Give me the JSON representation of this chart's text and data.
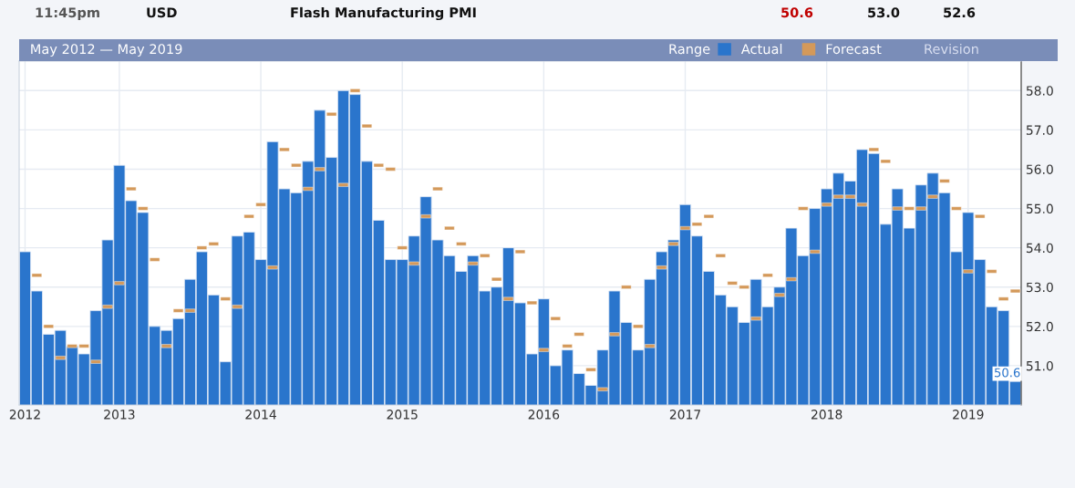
{
  "chart_data": {
    "type": "bar",
    "title": "May 2012 — May 2019",
    "categories": [
      "2012",
      null,
      null,
      null,
      null,
      null,
      null,
      null,
      "2013",
      null,
      null,
      null,
      null,
      null,
      null,
      null,
      null,
      null,
      null,
      null,
      "2014",
      null,
      null,
      null,
      null,
      null,
      null,
      null,
      null,
      null,
      null,
      null,
      "2015",
      null,
      null,
      null,
      null,
      null,
      null,
      null,
      null,
      null,
      null,
      null,
      "2016",
      null,
      null,
      null,
      null,
      null,
      null,
      null,
      null,
      null,
      null,
      null,
      "2017",
      null,
      null,
      null,
      null,
      null,
      null,
      null,
      null,
      null,
      null,
      null,
      "2018",
      null,
      null,
      null,
      null,
      null,
      null,
      null,
      null,
      null,
      null,
      null,
      "2019",
      null,
      null,
      null,
      null
    ],
    "series": [
      {
        "name": "Actual",
        "color": "#2a75cc",
        "values": [
          53.9,
          52.9,
          51.8,
          51.9,
          51.5,
          51.3,
          52.4,
          54.2,
          56.1,
          55.2,
          54.9,
          52.0,
          51.9,
          52.2,
          53.2,
          53.9,
          52.8,
          51.1,
          54.3,
          54.4,
          53.7,
          56.7,
          55.5,
          55.4,
          56.2,
          57.5,
          56.3,
          58.0,
          57.9,
          56.2,
          54.7,
          53.7,
          53.7,
          54.3,
          55.3,
          54.2,
          53.8,
          53.4,
          53.8,
          52.9,
          53.0,
          54.0,
          52.6,
          51.3,
          52.7,
          51.0,
          51.4,
          50.8,
          50.5,
          51.4,
          52.9,
          52.1,
          51.4,
          53.2,
          53.9,
          54.2,
          55.1,
          54.3,
          53.4,
          52.8,
          52.5,
          52.1,
          53.2,
          52.5,
          53.0,
          54.5,
          53.8,
          55.0,
          55.5,
          55.9,
          55.7,
          56.5,
          56.4,
          54.6,
          55.5,
          54.5,
          55.6,
          55.9,
          55.4,
          53.9,
          54.9,
          53.7,
          52.5,
          52.4,
          50.6
        ],
        "value_labels": [
          null,
          null,
          null,
          null,
          null,
          null,
          null,
          null,
          null,
          null,
          null,
          null,
          null,
          null,
          null,
          null,
          null,
          null,
          null,
          null,
          null,
          null,
          null,
          null,
          null,
          null,
          null,
          null,
          null,
          null,
          null,
          null,
          null,
          null,
          null,
          null,
          null,
          null,
          null,
          null,
          null,
          null,
          null,
          null,
          null,
          null,
          null,
          null,
          null,
          null,
          null,
          null,
          null,
          null,
          null,
          null,
          null,
          null,
          null,
          null,
          null,
          null,
          null,
          null,
          null,
          null,
          null,
          null,
          null,
          null,
          null,
          null,
          null,
          null,
          null,
          null,
          null,
          null,
          null,
          null,
          null,
          null,
          null,
          null,
          "50.6"
        ]
      },
      {
        "name": "Forecast",
        "type": "scatter",
        "color": "#d4995a",
        "values": [
          null,
          53.3,
          52.0,
          51.2,
          51.5,
          51.5,
          51.1,
          52.5,
          53.1,
          55.5,
          55.0,
          53.7,
          51.5,
          52.4,
          52.4,
          54.0,
          54.1,
          52.7,
          52.5,
          54.8,
          55.1,
          53.5,
          56.5,
          56.1,
          55.5,
          56.0,
          57.4,
          55.6,
          58.0,
          57.1,
          56.1,
          56.0,
          54.0,
          53.6,
          54.8,
          55.5,
          54.5,
          54.1,
          53.6,
          53.8,
          53.2,
          52.7,
          53.9,
          52.6,
          51.4,
          52.2,
          51.5,
          51.8,
          50.9,
          50.4,
          51.8,
          53.0,
          52.0,
          51.5,
          53.5,
          54.1,
          54.5,
          54.6,
          54.8,
          53.8,
          53.1,
          53.0,
          52.2,
          53.3,
          52.8,
          53.2,
          55.0,
          53.9,
          55.1,
          55.3,
          55.3,
          55.1,
          56.5,
          56.2,
          55.0,
          55.0,
          55.0,
          55.3,
          55.7,
          55.0,
          53.4,
          54.8,
          53.4,
          52.7,
          52.9
        ]
      }
    ],
    "ylim": [
      50,
      58.75
    ],
    "yticks": [
      {
        "value": 51,
        "label": "51.0"
      },
      {
        "value": 52,
        "label": "52.0"
      },
      {
        "value": 53,
        "label": "53.0"
      },
      {
        "value": 54,
        "label": "54.0"
      },
      {
        "value": 55,
        "label": "55.0"
      },
      {
        "value": 56,
        "label": "56.0"
      },
      {
        "value": 57,
        "label": "57.0"
      },
      {
        "value": 58,
        "label": "58.0"
      }
    ],
    "grid": true,
    "legend": "top right",
    "annotations": [
      "11:45pm",
      "USD",
      "Flash Manufacturing PMI",
      "50.6",
      "53.0",
      "52.6",
      "Range",
      "Revision"
    ]
  }
}
